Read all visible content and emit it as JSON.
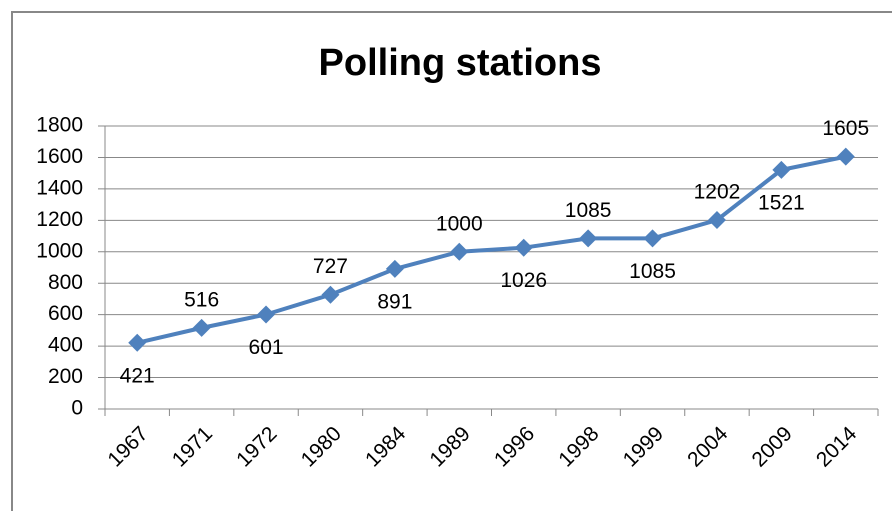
{
  "chart_data": {
    "type": "line",
    "title": "Polling stations",
    "categories": [
      "1967",
      "1971",
      "1972",
      "1980",
      "1984",
      "1989",
      "1996",
      "1998",
      "1999",
      "2004",
      "2009",
      "2014"
    ],
    "values": [
      421,
      516,
      601,
      727,
      891,
      1000,
      1026,
      1085,
      1085,
      1202,
      1521,
      1605
    ],
    "color": "#4f81bd",
    "ylim": [
      0,
      1800
    ],
    "yticks": [
      0,
      200,
      400,
      600,
      800,
      1000,
      1200,
      1400,
      1600,
      1800
    ],
    "grid": true
  }
}
